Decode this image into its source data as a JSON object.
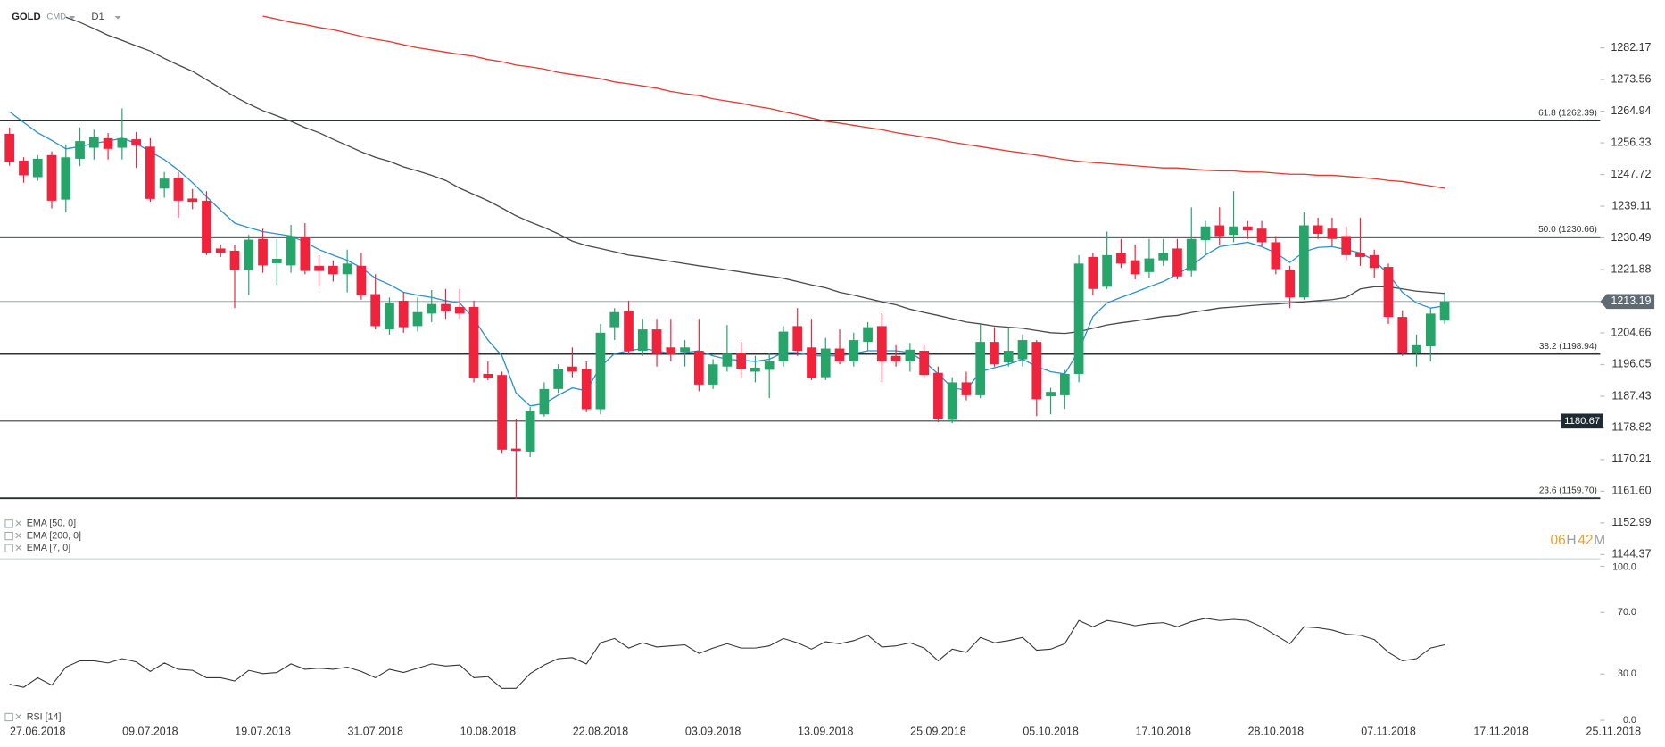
{
  "header": {
    "symbol": "GOLD",
    "market": "CMD",
    "timeframe": "D1"
  },
  "timer": {
    "hours": "06",
    "hours_unit": "H",
    "minutes": "42",
    "minutes_unit": "M"
  },
  "chart_data": {
    "type": "candlestick",
    "categories": [
      null,
      null,
      "27.06.2018",
      null,
      null,
      null,
      null,
      null,
      null,
      null,
      "09.07.2018",
      null,
      null,
      null,
      null,
      null,
      null,
      null,
      "19.07.2018",
      null,
      null,
      null,
      null,
      null,
      null,
      null,
      "31.07.2018",
      null,
      null,
      null,
      null,
      null,
      null,
      null,
      "10.08.2018",
      null,
      null,
      null,
      null,
      null,
      null,
      null,
      "22.08.2018",
      null,
      null,
      null,
      null,
      null,
      null,
      null,
      "03.09.2018",
      null,
      null,
      null,
      null,
      null,
      null,
      null,
      "13.09.2018",
      null,
      null,
      null,
      null,
      null,
      null,
      null,
      "25.09.2018",
      null,
      null,
      null,
      null,
      null,
      null,
      null,
      "05.10.2018",
      null,
      null,
      null,
      null,
      null,
      null,
      null,
      "17.10.2018",
      null,
      null,
      null,
      null,
      null,
      null,
      null,
      "28.10.2018",
      null,
      null,
      null,
      null,
      null,
      null,
      null,
      "07.11.2018",
      null,
      null,
      null,
      null,
      null,
      null,
      null,
      "17.11.2018",
      null,
      null,
      null,
      null,
      null,
      null,
      null,
      "25.11.2018"
    ],
    "open": [
      1258.8,
      1251.5,
      1247,
      1253,
      1240.9,
      1252,
      1255,
      1257.6,
      1255,
      1257.3,
      1255.3,
      1243.9,
      1246.9,
      1241.2,
      1240.6,
      1227.6,
      1227,
      1221.8,
      1230.2,
      1223.6,
      1223,
      1230.8,
      1222.9,
      1222.9,
      1220.6,
      1222.9,
      1215.2,
      1205.6,
      1213.4,
      1206.5,
      1209.9,
      1212.5,
      1211.7,
      1211.7,
      1193.5,
      1193.2,
      1173.2,
      1172.4,
      1182.5,
      1189.4,
      1195.5,
      1194.9,
      1183.9,
      1206.2,
      1210.6,
      1199.8,
      1205.6,
      1200.7,
      1199.5,
      1199.8,
      1190.6,
      1195.5,
      1199.3,
      1194.1,
      1194.6,
      1196.9,
      1206.5,
      1200.7,
      1192.6,
      1200.4,
      1196.9,
      1202.2,
      1206.5,
      1198.4,
      1196.9,
      1199.8,
      1193.8,
      1181,
      1191.2,
      1187.7,
      1202.2,
      1196.6,
      1197.5,
      1202.2,
      1187.4,
      1187.7,
      1193.5,
      1225.3,
      1217.2,
      1226.4,
      1224.4,
      1221.2,
      1224.4,
      1227.6,
      1221.5,
      1229.9,
      1233.9,
      1231.3,
      1233.6,
      1233,
      1229.3,
      1221.8,
      1214.3,
      1233.9,
      1233,
      1231,
      1226.4,
      1225.8,
      1222.6,
      1209,
      1199.3,
      1201,
      1208,
      null,
      null,
      null,
      null,
      null,
      null,
      null,
      null,
      null,
      null,
      null,
      null
    ],
    "high": [
      1260.5,
      1252.4,
      1253,
      1254,
      1255.9,
      1260.5,
      1259.9,
      1259,
      1265.7,
      1259.3,
      1257.6,
      1248.4,
      1248.4,
      1243.8,
      1243.2,
      1228.7,
      1228.7,
      1231.3,
      1233,
      1230.2,
      1234,
      1234.5,
      1225.8,
      1224.4,
      1227.3,
      1226.4,
      1220.6,
      1214.3,
      1215.7,
      1214.3,
      1216.3,
      1216.6,
      1216.6,
      1213.4,
      1196.9,
      1194.1,
      1181.3,
      1184.5,
      1191.2,
      1196.1,
      1200.7,
      1196.9,
      1207.1,
      1211.4,
      1213.4,
      1208.5,
      1208.5,
      1208.5,
      1202.7,
      1208.5,
      1197.5,
      1206.8,
      1202.2,
      1198.4,
      1199.3,
      1206.5,
      1211.4,
      1208.5,
      1203.3,
      1205.6,
      1204.7,
      1207.6,
      1210,
      1201.3,
      1201.9,
      1201.3,
      1195.5,
      1192.6,
      1194.1,
      1207.1,
      1206.2,
      1206.2,
      1204.2,
      1202.7,
      1189.7,
      1194.6,
      1225.8,
      1226.4,
      1232.2,
      1230.2,
      1228.7,
      1230.2,
      1230.2,
      1230.2,
      1238.8,
      1235.1,
      1238.8,
      1243.2,
      1235.1,
      1235.1,
      1231,
      1222.9,
      1237.4,
      1236,
      1236,
      1233.6,
      1236,
      1227.3,
      1223.5,
      1210.8,
      1204.2,
      1211.4,
      1215.7,
      null,
      null,
      null,
      null,
      null,
      null,
      null,
      null,
      null,
      null,
      null,
      null
    ],
    "low": [
      1250.1,
      1245.5,
      1246,
      1238.5,
      1237.4,
      1250,
      1251.8,
      1251.8,
      1251.8,
      1249.5,
      1240.3,
      1241.4,
      1236,
      1238.3,
      1225.8,
      1225.3,
      1211.4,
      1214.9,
      1221,
      1217.7,
      1221,
      1220.6,
      1217.2,
      1218.6,
      1215.7,
      1213.7,
      1205.6,
      1204.2,
      1204.7,
      1205,
      1207.6,
      1208.5,
      1208.5,
      1191.2,
      1191.8,
      1171.8,
      1159.5,
      1170.9,
      1181.9,
      1188.3,
      1192.6,
      1183.1,
      1182.5,
      1202.7,
      1198.9,
      1198.4,
      1195.5,
      1196.9,
      1195.5,
      1188.8,
      1189.4,
      1194.1,
      1192.6,
      1191.2,
      1186.9,
      1195.5,
      1198.4,
      1191.8,
      1191.8,
      1196.1,
      1195.5,
      1199.8,
      1191.2,
      1195.5,
      1194.1,
      1192.6,
      1180.4,
      1180.1,
      1186.3,
      1186.9,
      1195.5,
      1195.5,
      1195.5,
      1182,
      1182.5,
      1184,
      1191.2,
      1214.9,
      1216.6,
      1222.3,
      1219.2,
      1219.5,
      1222.9,
      1219.2,
      1220,
      1225.8,
      1228.7,
      1229.3,
      1230.2,
      1228.1,
      1220.6,
      1211.4,
      1213.7,
      1230.2,
      1228.1,
      1224.4,
      1222.9,
      1219.5,
      1207.1,
      1198.4,
      1195.5,
      1196.9,
      1207.1,
      null,
      null,
      null,
      null,
      null,
      null,
      null,
      null,
      null,
      null,
      null,
      null
    ],
    "close": [
      1251.2,
      1247.5,
      1252,
      1240.6,
      1252.4,
      1256.8,
      1257.8,
      1254.7,
      1257.6,
      1255.6,
      1241.1,
      1246.6,
      1240.6,
      1240.3,
      1226.4,
      1226.4,
      1221.8,
      1230,
      1223,
      1224.8,
      1231,
      1221.5,
      1221.5,
      1220.6,
      1223.5,
      1214.9,
      1206.5,
      1212.8,
      1206.2,
      1210.3,
      1212.5,
      1210.5,
      1209.9,
      1192.3,
      1192.3,
      1172.9,
      1172.6,
      1183.4,
      1189.4,
      1194.9,
      1194.1,
      1183.9,
      1204.7,
      1210.3,
      1199.8,
      1205.6,
      1198.9,
      1198.9,
      1200.7,
      1190.6,
      1196.1,
      1199,
      1194.9,
      1195.2,
      1196.9,
      1205,
      1199.8,
      1192.3,
      1200.4,
      1196.9,
      1202.7,
      1206.2,
      1196.9,
      1196.9,
      1200.1,
      1193.2,
      1181.3,
      1191.2,
      1187.7,
      1202.2,
      1196.1,
      1199.8,
      1202.7,
      1186.6,
      1188.6,
      1193.5,
      1223.5,
      1216.6,
      1225.8,
      1223.5,
      1220.6,
      1224.9,
      1226.4,
      1220,
      1230.2,
      1233.6,
      1231,
      1233.6,
      1232.5,
      1229.3,
      1222,
      1214.3,
      1233.9,
      1231.6,
      1230.2,
      1225.8,
      1225.3,
      1222.3,
      1209,
      1199.3,
      1201.3,
      1209.9,
      1213.19,
      null,
      null,
      null,
      null,
      null,
      null,
      null,
      null,
      null,
      null,
      null,
      null
    ],
    "up_color": "#26a469",
    "down_color": "#f0233d",
    "ylim": [
      1143.5,
      1290.8
    ],
    "yticks": [
      1282.17,
      1273.56,
      1264.94,
      1256.33,
      1247.72,
      1239.11,
      1230.49,
      1221.88,
      1204.66,
      1196.05,
      1187.43,
      1178.82,
      1170.21,
      {
        "value": 1161.6,
        "label": "1161.60"
      },
      1152.99,
      1144.37
    ],
    "current_price": 1213.19,
    "price_lines": [
      1180.67
    ],
    "levels": [
      {
        "value": 1262.39,
        "label": "61.8 (1262.39)"
      },
      {
        "value": 1230.66,
        "label": "50.0 (1230.66)"
      },
      {
        "value": 1198.94,
        "label": "38.2 (1198.94)"
      },
      {
        "value": 1159.7,
        "label": "23.6 (1159.70)"
      }
    ],
    "lines": [
      {
        "name": "EMA [50, 0]",
        "color": "#4a4a4a",
        "values": [
          null,
          null,
          null,
          null,
          1290.5,
          1289.1,
          1287.4,
          1285.6,
          1284.2,
          1282.7,
          1281.3,
          1279.3,
          1277.5,
          1275.8,
          1273.5,
          1271.2,
          1268.9,
          1266.9,
          1265.1,
          1263.7,
          1262.2,
          1260.5,
          1259.1,
          1257.3,
          1255.6,
          1253.9,
          1252.4,
          1251.3,
          1249.8,
          1248.7,
          1247.5,
          1246.1,
          1244.0,
          1242.3,
          1240.6,
          1238.6,
          1236.5,
          1234.8,
          1233.3,
          1231.6,
          1229.6,
          1228.4,
          1227.6,
          1226.7,
          1225.8,
          1225.3,
          1224.7,
          1224.1,
          1223.5,
          1222.9,
          1222.4,
          1221.8,
          1221.2,
          1220.6,
          1220.1,
          1219.5,
          1218.6,
          1217.7,
          1216.9,
          1215.7,
          1214.9,
          1214.0,
          1213.1,
          1212.3,
          1211.1,
          1210.2,
          1209.4,
          1208.5,
          1207.6,
          1207.1,
          1206.5,
          1206.2,
          1205.9,
          1205.3,
          1204.7,
          1204.5,
          1205.0,
          1205.9,
          1206.8,
          1207.4,
          1207.9,
          1208.5,
          1209.1,
          1209.4,
          1210.2,
          1210.8,
          1211.4,
          1211.7,
          1212.0,
          1212.3,
          1212.5,
          1212.8,
          1213.1,
          1213.4,
          1213.7,
          1214.3,
          1216.6,
          1217.2,
          1217.2,
          1216.6,
          1216.0,
          1215.7,
          1215.4,
          null,
          null,
          null,
          null,
          null,
          null,
          null,
          null,
          null,
          null,
          null,
          null
        ]
      },
      {
        "name": "EMA [200, 0]",
        "color": "#e03a32",
        "values": [
          null,
          null,
          null,
          null,
          null,
          null,
          null,
          null,
          null,
          null,
          null,
          null,
          null,
          null,
          null,
          null,
          null,
          null,
          1290.8,
          1290.0,
          1289.1,
          1288.5,
          1287.7,
          1287.1,
          1286.2,
          1285.3,
          1284.5,
          1283.9,
          1283.0,
          1282.2,
          1281.6,
          1281.0,
          1280.4,
          1279.9,
          1279.0,
          1278.4,
          1277.5,
          1277.0,
          1276.4,
          1275.5,
          1274.9,
          1274.4,
          1273.8,
          1272.9,
          1272.4,
          1271.8,
          1271.2,
          1270.3,
          1269.7,
          1269.2,
          1268.3,
          1267.7,
          1267.1,
          1266.3,
          1265.7,
          1264.8,
          1264.0,
          1263.1,
          1262.2,
          1261.7,
          1261.1,
          1260.5,
          1259.9,
          1259.1,
          1258.5,
          1257.9,
          1257.3,
          1256.5,
          1255.9,
          1255.3,
          1254.7,
          1254.1,
          1253.6,
          1253.0,
          1252.4,
          1251.8,
          1251.3,
          1251.0,
          1250.7,
          1250.4,
          1250.1,
          1249.8,
          1249.5,
          1249.5,
          1249.2,
          1248.9,
          1248.7,
          1248.7,
          1248.4,
          1248.4,
          1248.1,
          1247.8,
          1247.8,
          1247.5,
          1247.5,
          1247.2,
          1246.9,
          1246.6,
          1246.1,
          1245.8,
          1245.2,
          1244.6,
          1244.0,
          null,
          null,
          null,
          null,
          null,
          null,
          null,
          null,
          null,
          null,
          null,
          null
        ]
      },
      {
        "name": "EMA [7, 0]",
        "color": "#2b90d0",
        "values": [
          1264.8,
          1261.9,
          1259.1,
          1257.0,
          1254.7,
          1255.3,
          1256.2,
          1256.8,
          1257.6,
          1256.2,
          1253.9,
          1251.8,
          1248.9,
          1245.5,
          1241.7,
          1238.0,
          1234.5,
          1233.3,
          1232.2,
          1231.6,
          1231.0,
          1229.3,
          1227.3,
          1225.8,
          1224.4,
          1222.4,
          1219.5,
          1217.8,
          1215.7,
          1214.9,
          1214.3,
          1213.4,
          1212.8,
          1208.5,
          1202.7,
          1198.4,
          1188.3,
          1184.8,
          1185.4,
          1187.7,
          1189.7,
          1188.9,
          1195.5,
          1199.0,
          1199.8,
          1200.4,
          1199.8,
          1199.0,
          1199.3,
          1199.8,
          1198.4,
          1197.5,
          1197.2,
          1196.9,
          1197.5,
          1199.3,
          1199.3,
          1198.4,
          1198.4,
          1198.4,
          1199.0,
          1199.8,
          1199.8,
          1199.8,
          1199.3,
          1196.9,
          1193.5,
          1189.7,
          1189.1,
          1194.1,
          1195.2,
          1196.1,
          1197.5,
          1195.5,
          1194.1,
          1193.5,
          1199.8,
          1209.1,
          1212.8,
          1214.3,
          1215.7,
          1217.2,
          1218.6,
          1220.6,
          1222.9,
          1225.8,
          1228.1,
          1228.7,
          1229.3,
          1228.1,
          1226.4,
          1223.8,
          1226.7,
          1227.9,
          1228.1,
          1227.3,
          1226.4,
          1224.4,
          1220.6,
          1215.7,
          1212.8,
          1211.4,
          1212.0,
          null,
          null,
          null,
          null,
          null,
          null,
          null,
          null,
          null,
          null,
          null,
          null
        ]
      }
    ],
    "rsi": {
      "name": "RSI [14]",
      "color": "#333333",
      "ylim": [
        0,
        100
      ],
      "yticks": [
        {
          "value": 100,
          "label": "100.0"
        },
        {
          "value": 70,
          "label": "70.0"
        },
        {
          "value": 30,
          "label": "30.0"
        },
        {
          "value": 0,
          "label": "0.0"
        }
      ],
      "values": [
        23.4,
        21.4,
        27.6,
        22.8,
        34.5,
        38.6,
        38.6,
        37.2,
        40.0,
        37.9,
        31.7,
        37.2,
        33.1,
        32.4,
        27.6,
        27.6,
        25.5,
        32.4,
        30.3,
        31.0,
        36.6,
        33.1,
        33.8,
        33.1,
        34.5,
        31.7,
        27.6,
        33.1,
        31.0,
        33.8,
        36.6,
        35.2,
        35.9,
        27.6,
        28.3,
        20.7,
        20.7,
        30.3,
        35.9,
        40.0,
        40.7,
        36.6,
        50.3,
        53.1,
        46.9,
        50.3,
        47.6,
        48.3,
        49.0,
        43.4,
        46.9,
        49.7,
        46.9,
        46.9,
        48.3,
        53.1,
        50.3,
        46.2,
        51.0,
        49.7,
        51.7,
        55.2,
        47.6,
        48.3,
        50.3,
        46.9,
        38.6,
        46.2,
        44.1,
        53.8,
        50.3,
        51.7,
        53.8,
        45.5,
        46.2,
        49.7,
        64.8,
        60.7,
        64.8,
        63.4,
        61.4,
        62.8,
        63.4,
        60.7,
        64.1,
        66.2,
        64.8,
        65.5,
        64.8,
        60.7,
        55.2,
        49.7,
        60.7,
        60.0,
        58.6,
        55.9,
        55.2,
        52.4,
        44.1,
        38.6,
        40.0,
        46.9,
        49.0,
        null,
        null,
        null,
        null,
        null,
        null,
        null,
        null,
        null,
        null,
        null,
        null
      ]
    }
  }
}
